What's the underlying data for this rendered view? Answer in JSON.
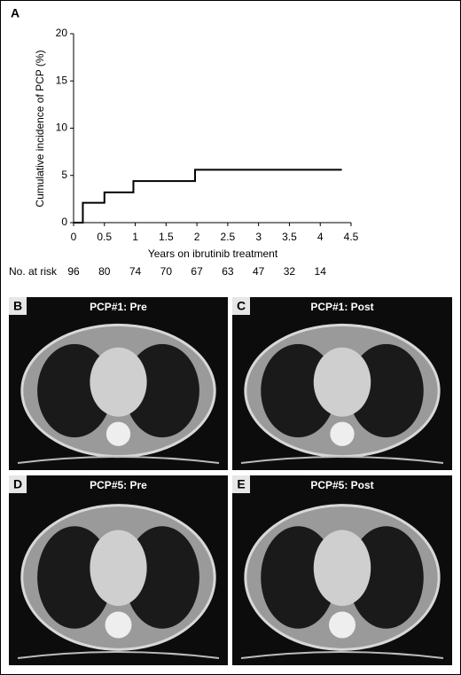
{
  "chart_data": {
    "type": "step",
    "panel_label": "A",
    "x_label": "Years on ibrutinib treatment",
    "y_label": "Cumulative incidence of PCP (%)",
    "x": [
      0,
      0.15,
      0.5,
      0.97,
      1.97,
      4.35
    ],
    "series": [
      {
        "name": null,
        "color": "#000000",
        "values": [
          0,
          2.1,
          3.2,
          4.4,
          5.6,
          5.6
        ]
      }
    ],
    "xlim": [
      0,
      4.5
    ],
    "xticks": [
      0,
      0.5,
      1,
      1.5,
      2,
      2.5,
      3,
      3.5,
      4,
      4.5
    ],
    "ylim": [
      0,
      20
    ],
    "yticks": [
      0,
      5,
      10,
      15,
      20
    ],
    "grid": false,
    "at_risk": {
      "label": "No. at risk",
      "values": [
        96,
        80,
        74,
        70,
        67,
        63,
        47,
        32,
        14
      ]
    }
  },
  "panels": [
    {
      "label": "B",
      "title": "PCP#1: Pre"
    },
    {
      "label": "C",
      "title": "PCP#1: Post"
    },
    {
      "label": "D",
      "title": "PCP#5: Pre"
    },
    {
      "label": "E",
      "title": "PCP#5: Post"
    }
  ]
}
